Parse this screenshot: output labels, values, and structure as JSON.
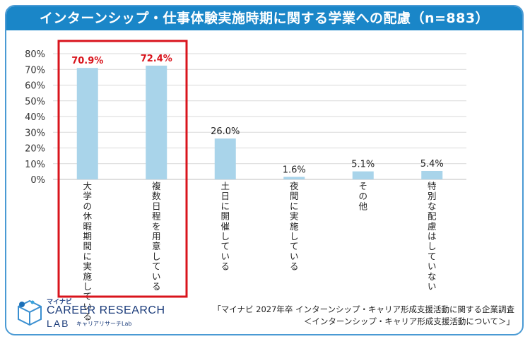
{
  "title": "インターンシップ・仕事体験実施時期に関する学業への配慮（n=883）",
  "colors": {
    "title_bg": "#1a86c8",
    "bar": "#a9d4ea",
    "highlight_box": "#d9141c",
    "highlight_label": "#d9141c",
    "grid": "#d9d9d9"
  },
  "chart_data": {
    "type": "bar",
    "title": "インターンシップ・仕事体験実施時期に関する学業への配慮（n=883）",
    "categories": [
      "大学の休暇期間に実施している",
      "複数日程を用意している",
      "土日に開催している",
      "夜間に実施している",
      "その他",
      "特別な配慮はしていない"
    ],
    "values": [
      70.9,
      72.4,
      26.0,
      1.6,
      5.1,
      5.4
    ],
    "value_labels": [
      "70.9%",
      "72.4%",
      "26.0%",
      "1.6%",
      "5.1%",
      "5.4%"
    ],
    "ylim": [
      0,
      80
    ],
    "yticks": [
      "0%",
      "10%",
      "20%",
      "30%",
      "40%",
      "50%",
      "60%",
      "70%",
      "80%"
    ],
    "grid": true,
    "highlighted_categories": [
      0,
      1
    ]
  },
  "logo": {
    "mynavi": "マイナビ",
    "brand": "CAREER RESEARCH",
    "lab": "LAB",
    "lab_sub": "キャリアリサーチLab"
  },
  "source": {
    "line1": "「マイナビ 2027年卒 インターンシップ・キャリア形成支援活動に関する企業調査",
    "line2": "＜インターンシップ・キャリア形成支援活動について＞」"
  }
}
